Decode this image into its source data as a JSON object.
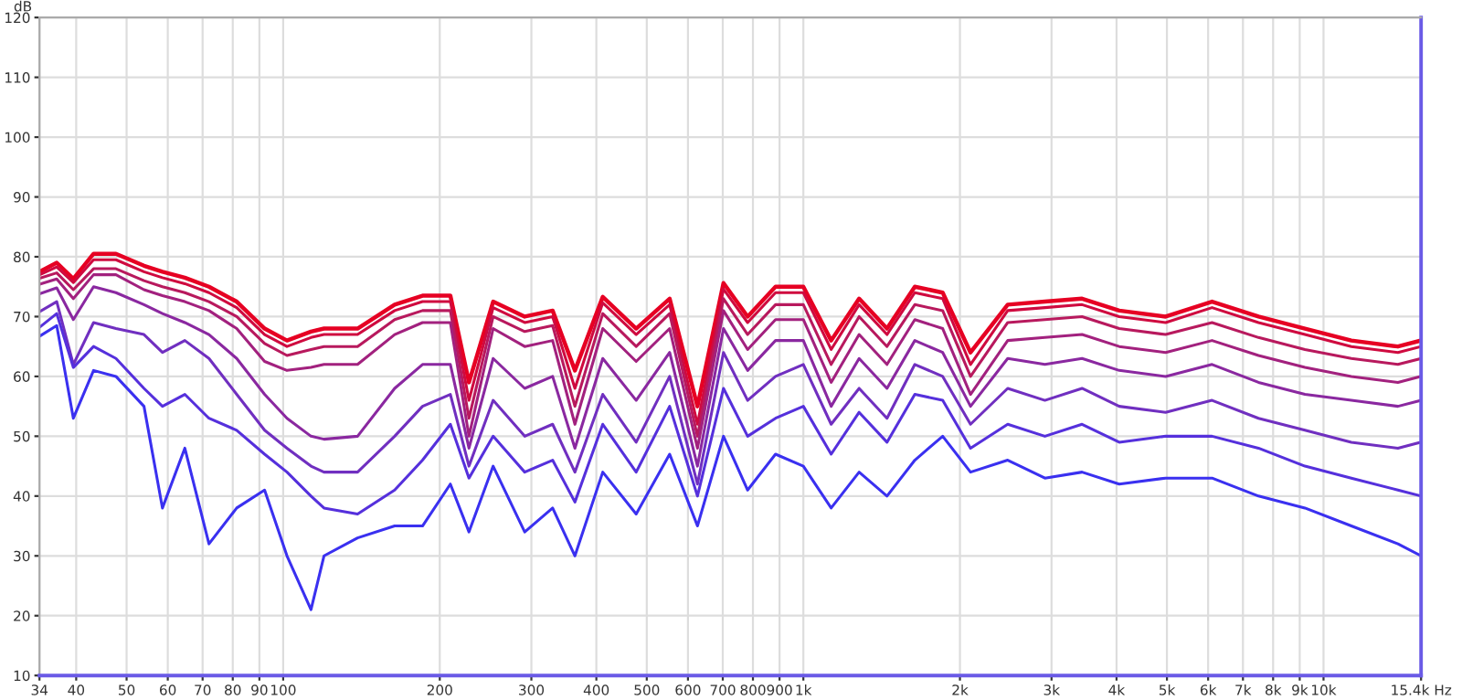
{
  "chart_data": {
    "type": "line",
    "ylabel": "dB",
    "log": "x",
    "grid": true,
    "marker": "none",
    "line_style": "solid",
    "x": [
      34,
      36.7,
      39.5,
      43.2,
      47.7,
      54,
      58.6,
      64.7,
      72,
      81.4,
      92.1,
      101.7,
      113.1,
      119.8,
      139,
      163.8,
      185.3,
      209.6,
      227.6,
      253.3,
      291.3,
      329.6,
      363.8,
      411.5,
      477.1,
      553.3,
      625.8,
      702.2,
      781.4,
      884.1,
      1000,
      1131,
      1280,
      1448,
      1638,
      1853,
      2096,
      2471,
      2913,
      3434,
      4048,
      4971,
      6105,
      7499,
      9211,
      11310,
      13900,
      15400
    ],
    "series": [
      {
        "color": "#e60023",
        "values": [
          77.5,
          79,
          76.3,
          80.5,
          80.5,
          78.5,
          77.5,
          76.5,
          75,
          72.5,
          68,
          66,
          67.5,
          68,
          68,
          72,
          73.5,
          73.5,
          59,
          72.5,
          70,
          71,
          61,
          73.3,
          68,
          73,
          55,
          75.6,
          70,
          75,
          75,
          66,
          73,
          68,
          75,
          74,
          64,
          72,
          72.5,
          73,
          71,
          70,
          72.5,
          70,
          68,
          66,
          65,
          66
        ]
      },
      {
        "color": "#cf0a3f",
        "values": [
          77,
          78.3,
          75.7,
          79.5,
          79.5,
          77.5,
          76.5,
          75.5,
          74,
          71.5,
          67,
          65,
          66.5,
          67,
          67,
          71,
          72.5,
          72.5,
          56,
          71.5,
          69,
          70,
          58,
          72.3,
          67,
          72,
          52,
          74.6,
          69,
          74,
          74,
          64.5,
          72,
          67,
          74,
          73,
          62,
          71,
          71.5,
          72,
          70,
          69,
          71.5,
          69,
          67,
          65,
          64,
          65
        ]
      },
      {
        "color": "#b8195d",
        "values": [
          76.4,
          77.3,
          74.5,
          78,
          78,
          76,
          75,
          74,
          72.5,
          70,
          65.5,
          63.5,
          64.5,
          65,
          65,
          69.5,
          71,
          71,
          53,
          70,
          67.5,
          68.5,
          55,
          70.5,
          65,
          70.5,
          50,
          73,
          67,
          72,
          72,
          62,
          70,
          65,
          72,
          71,
          60,
          69,
          69.5,
          70,
          68,
          67,
          69,
          66.5,
          64.5,
          63,
          62,
          63
        ]
      },
      {
        "color": "#a2217e",
        "values": [
          75.4,
          76.3,
          73,
          77,
          77,
          74.5,
          73.5,
          72.5,
          71,
          68,
          62.5,
          61,
          61.5,
          62,
          62,
          67,
          69,
          69,
          50,
          68,
          65,
          66,
          52,
          68,
          62.5,
          68,
          48,
          71,
          64.5,
          69.5,
          69.5,
          59,
          67,
          62,
          69.5,
          68,
          57,
          66,
          66.5,
          67,
          65,
          64,
          66,
          63.5,
          61.5,
          60,
          59,
          60
        ]
      },
      {
        "color": "#8a28a0",
        "values": [
          73.8,
          74.8,
          69.5,
          75,
          74,
          72,
          70.5,
          69,
          67,
          63,
          57,
          53,
          50,
          49.5,
          50,
          58,
          62,
          62,
          48,
          63,
          58,
          60,
          48,
          63,
          56,
          64,
          45,
          68,
          61,
          66,
          66,
          55,
          63,
          58,
          66,
          64,
          55,
          63,
          62,
          63,
          61,
          60,
          62,
          59,
          57,
          56,
          55,
          56
        ]
      },
      {
        "color": "#702fc0",
        "values": [
          70.8,
          72.5,
          62,
          69,
          68,
          67,
          64,
          66,
          63,
          57,
          51,
          48,
          45,
          44,
          44,
          50,
          55,
          57,
          45,
          56,
          50,
          52,
          44,
          57,
          49,
          60,
          42,
          64,
          56,
          60,
          62,
          52,
          58,
          53,
          62,
          60,
          52,
          58,
          56,
          58,
          55,
          54,
          56,
          53,
          51,
          49,
          48,
          49
        ]
      },
      {
        "color": "#5530dc",
        "values": [
          68.2,
          70.5,
          61.5,
          65,
          63,
          58,
          55,
          57,
          53,
          51,
          47,
          44,
          40,
          38,
          37,
          41,
          46,
          52,
          43,
          50,
          44,
          46,
          39,
          52,
          44,
          55,
          40,
          58,
          50,
          53,
          55,
          47,
          54,
          49,
          57,
          56,
          48,
          52,
          50,
          52,
          49,
          50,
          50,
          48,
          45,
          43,
          41,
          40
        ]
      },
      {
        "color": "#3a30f0",
        "values": [
          66.7,
          68.5,
          53,
          61,
          60,
          55,
          38,
          48,
          32,
          38,
          41,
          30,
          21,
          30,
          33,
          35,
          35,
          42,
          34,
          45,
          34,
          38,
          30,
          44,
          37,
          47,
          35,
          50,
          41,
          47,
          45,
          38,
          44,
          40,
          46,
          50,
          44,
          46,
          43,
          44,
          42,
          43,
          43,
          40,
          38,
          35,
          32,
          30
        ]
      }
    ],
    "xlim": [
      34,
      15400
    ],
    "xticks": [
      34,
      40,
      50,
      60,
      70,
      80,
      90,
      100,
      200,
      300,
      400,
      500,
      600,
      700,
      800,
      900,
      {
        "value": 1000,
        "label": "1k"
      },
      {
        "value": 2000,
        "label": "2k"
      },
      {
        "value": 3000,
        "label": "3k"
      },
      {
        "value": 4000,
        "label": "4k"
      },
      {
        "value": 5000,
        "label": "5k"
      },
      {
        "value": 6000,
        "label": "6k"
      },
      {
        "value": 7000,
        "label": "7k"
      },
      {
        "value": 8000,
        "label": "8k"
      },
      {
        "value": 9000,
        "label": "9k"
      },
      {
        "value": 10000,
        "label": "10k"
      },
      {
        "value": 15400,
        "label": "15.4k Hz"
      }
    ],
    "ylim": [
      10,
      120
    ],
    "yticks": [
      10,
      20,
      30,
      40,
      50,
      60,
      70,
      80,
      90,
      100,
      110,
      120
    ]
  }
}
